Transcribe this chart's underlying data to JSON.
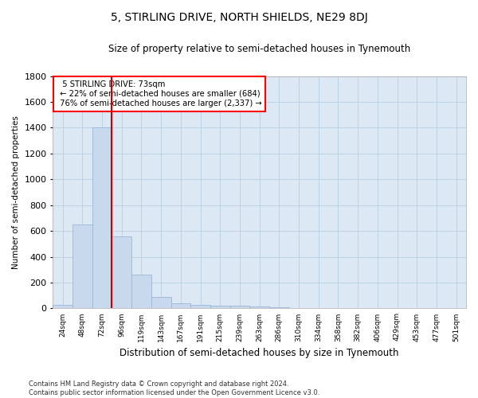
{
  "title": "5, STIRLING DRIVE, NORTH SHIELDS, NE29 8DJ",
  "subtitle": "Size of property relative to semi-detached houses in Tynemouth",
  "xlabel": "Distribution of semi-detached houses by size in Tynemouth",
  "ylabel": "Number of semi-detached properties",
  "categories": [
    "24sqm",
    "48sqm",
    "72sqm",
    "96sqm",
    "119sqm",
    "143sqm",
    "167sqm",
    "191sqm",
    "215sqm",
    "239sqm",
    "263sqm",
    "286sqm",
    "310sqm",
    "334sqm",
    "358sqm",
    "382sqm",
    "406sqm",
    "429sqm",
    "453sqm",
    "477sqm",
    "501sqm"
  ],
  "values": [
    30,
    650,
    1400,
    560,
    260,
    90,
    40,
    30,
    20,
    20,
    15,
    10,
    5,
    0,
    0,
    0,
    0,
    0,
    5,
    0,
    5
  ],
  "bar_color": "#c8d9ee",
  "bar_edge_color": "#9ab8d8",
  "marker_bin_index": 2,
  "marker_color": "#cc0000",
  "annotation_line1": "5 STIRLING DRIVE: 73sqm",
  "annotation_line2": "← 22% of semi-detached houses are smaller (684)",
  "annotation_line3": "76% of semi-detached houses are larger (2,337) →",
  "ylim": [
    0,
    1800
  ],
  "yticks": [
    0,
    200,
    400,
    600,
    800,
    1000,
    1200,
    1400,
    1600,
    1800
  ],
  "footer_line1": "Contains HM Land Registry data © Crown copyright and database right 2024.",
  "footer_line2": "Contains public sector information licensed under the Open Government Licence v3.0.",
  "background_color": "#ffffff",
  "plot_bg_color": "#dce9f5",
  "grid_color": "#b8cfe0"
}
